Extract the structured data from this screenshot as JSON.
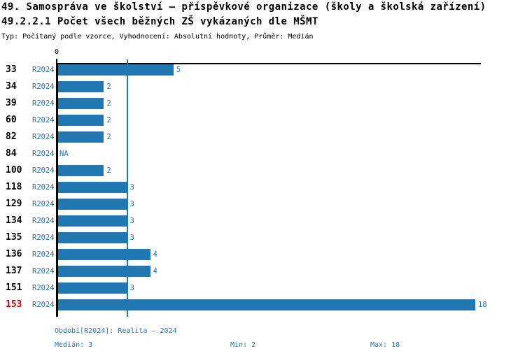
{
  "header": {
    "title": "49. Samospráva ve školství – příspěvkové organizace (školy a školská zařízení)",
    "subtitle": "49.2.2.1 Počet všech běžných ZŠ vykázaných dle MŠMT",
    "meta": "Typ: Počítaný podle vzorce, Vyhodnocení: Absolutní hodnoty, Průměr: Medián"
  },
  "chart_data": {
    "type": "bar",
    "orientation": "horizontal",
    "series_label": "R2024",
    "categories": [
      "33",
      "34",
      "39",
      "60",
      "82",
      "84",
      "100",
      "118",
      "129",
      "134",
      "135",
      "136",
      "137",
      "151",
      "153"
    ],
    "values": [
      5,
      2,
      2,
      2,
      2,
      null,
      2,
      3,
      3,
      3,
      3,
      4,
      4,
      3,
      18
    ],
    "value_labels": [
      "5",
      "2",
      "2",
      "2",
      "2",
      "NA",
      "2",
      "3",
      "3",
      "3",
      "3",
      "4",
      "4",
      "3",
      "18"
    ],
    "highlighted_category": "153",
    "axis_zero_label": "0",
    "xlim": [
      0,
      18
    ],
    "median_line_value": 3,
    "grid": false,
    "legend_position": "none",
    "colors": {
      "bar": "#1f77b4",
      "accent_text": "#2077b4",
      "highlight_label": "#d40000",
      "axis": "#000000"
    }
  },
  "footer": {
    "period": "Období[R2024]: Realita – 2024",
    "median": "Medián: 3",
    "min": "Min: 2",
    "max": "Max: 18"
  }
}
